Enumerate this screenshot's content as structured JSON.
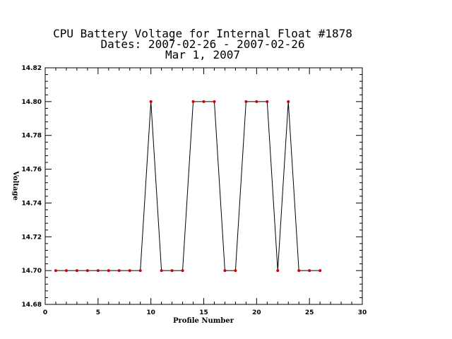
{
  "chart_data": {
    "type": "line",
    "title_lines": [
      "CPU Battery Voltage for Internal Float #1878",
      "Dates:  2007-02-26 -  2007-02-26",
      "Mar  1, 2007"
    ],
    "xlabel": "Profile Number",
    "ylabel": "Voltage",
    "xlim": [
      0,
      30
    ],
    "ylim": [
      14.68,
      14.82
    ],
    "x_ticks": [
      0,
      5,
      10,
      15,
      20,
      25,
      30
    ],
    "x_tick_labels": [
      "0",
      "5",
      "10",
      "15",
      "20",
      "25",
      "30"
    ],
    "y_ticks": [
      14.68,
      14.7,
      14.72,
      14.74,
      14.76,
      14.78,
      14.8,
      14.82
    ],
    "y_tick_labels": [
      "14.68",
      "14.70",
      "14.72",
      "14.74",
      "14.76",
      "14.78",
      "14.80",
      "14.82"
    ],
    "grid": false,
    "line_color": "#000000",
    "marker_color": "#d40000",
    "series": [
      {
        "x": [
          1,
          2,
          3,
          4,
          5,
          6,
          7,
          8,
          9,
          10,
          11,
          12,
          13,
          14,
          15,
          16,
          17,
          18,
          19,
          20,
          21,
          22,
          23,
          24,
          25,
          26
        ],
        "values": [
          14.7,
          14.7,
          14.7,
          14.7,
          14.7,
          14.7,
          14.7,
          14.7,
          14.7,
          14.8,
          14.7,
          14.7,
          14.7,
          14.8,
          14.8,
          14.8,
          14.7,
          14.7,
          14.8,
          14.8,
          14.8,
          14.7,
          14.8,
          14.7,
          14.7,
          14.7
        ]
      }
    ]
  }
}
